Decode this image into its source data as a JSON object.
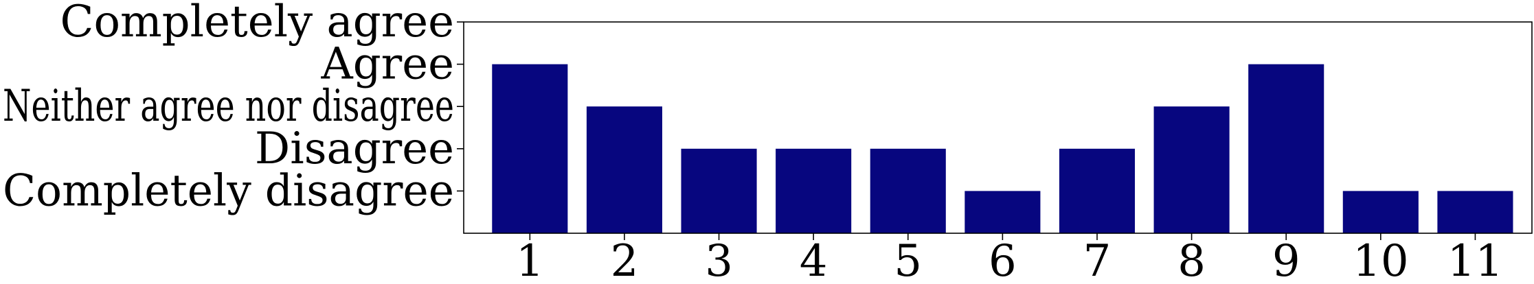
{
  "chart_data": {
    "type": "bar",
    "title": "",
    "xlabel": "",
    "ylabel": "",
    "categories": [
      "1",
      "2",
      "3",
      "4",
      "5",
      "6",
      "7",
      "8",
      "9",
      "10",
      "11"
    ],
    "values": [
      4,
      3,
      2,
      2,
      2,
      1,
      2,
      3,
      4,
      1,
      1
    ],
    "y_tick_values": [
      1,
      2,
      3,
      4,
      5
    ],
    "y_tick_labels": [
      "Completely disagree",
      "Disagree",
      "Neither agree nor disagree",
      "Agree",
      "Completely agree"
    ],
    "ylim": [
      0,
      5
    ],
    "bar_color": "#07067f",
    "grid": false,
    "legend": "none"
  }
}
